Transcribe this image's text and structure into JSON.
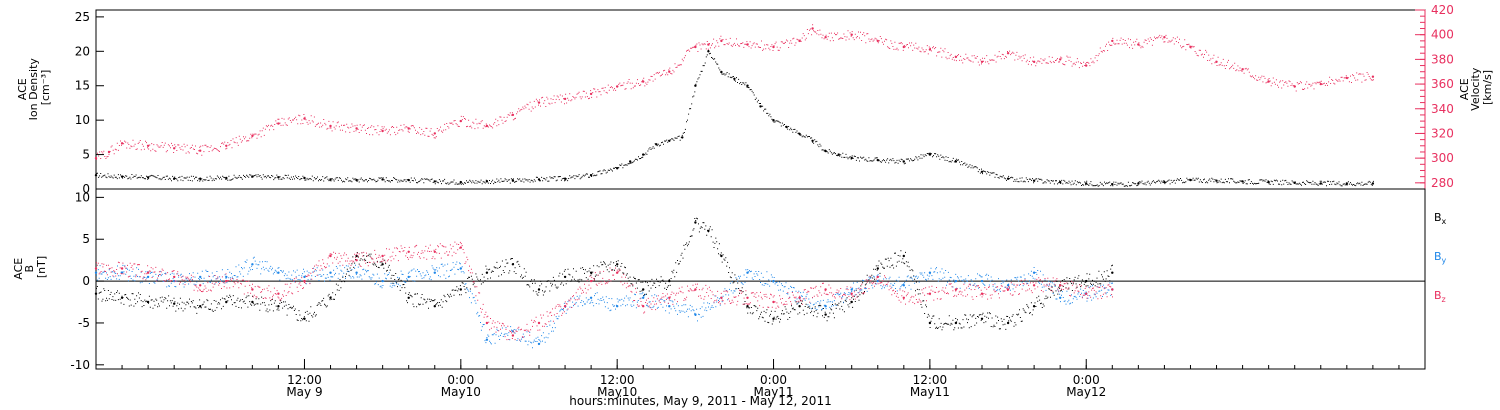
{
  "colors": {
    "density": "#000000",
    "velocity": "#e8305f",
    "bx": "#000000",
    "by": "#1e86e8",
    "bz": "#e8305f",
    "axis": "#000000"
  },
  "chart_data": [
    {
      "type": "scatter",
      "name": "plasma-panel",
      "ylabel_left": [
        "ACE",
        "Ion Density",
        "[cm⁻³]"
      ],
      "ylabel_right": [
        "ACE",
        "Velocity",
        "[km/s]"
      ],
      "xlim": [
        0,
        102
      ],
      "ylim_left": [
        0,
        26
      ],
      "ylim_right": [
        275,
        420
      ],
      "yticks_left": [
        0,
        5,
        10,
        15,
        20,
        25
      ],
      "yticks_right": [
        280,
        300,
        320,
        340,
        360,
        380,
        400,
        420
      ],
      "x_units": "hours since May 8 2011 20:00 UT",
      "series": [
        {
          "id": "density",
          "x": [
            0,
            2,
            4,
            6,
            8,
            10,
            12,
            14,
            16,
            18,
            20,
            22,
            24,
            26,
            28,
            30,
            32,
            34,
            36,
            38,
            40,
            41,
            42,
            43,
            44,
            45,
            46,
            47,
            48,
            49,
            50,
            51,
            52,
            53,
            54,
            55,
            56,
            57,
            58,
            60,
            62,
            64,
            66,
            68,
            70,
            72,
            74,
            76,
            78,
            80,
            82,
            84,
            86,
            88,
            90,
            92,
            94,
            96,
            98
          ],
          "y": [
            2,
            1.8,
            1.7,
            1.5,
            1.5,
            1.6,
            1.8,
            1.7,
            1.6,
            1.4,
            1.3,
            1.4,
            1.3,
            1.1,
            1.0,
            1.1,
            1.2,
            1.4,
            1.5,
            2.0,
            3.0,
            4.0,
            5.0,
            6.5,
            7.0,
            7.5,
            15,
            20,
            17,
            16,
            15,
            12,
            10,
            9,
            8,
            7,
            5.5,
            5,
            4.5,
            4.2,
            4.0,
            5.0,
            4.0,
            2.5,
            1.5,
            1.2,
            1.0,
            0.8,
            0.7,
            0.8,
            1.0,
            1.3,
            1.2,
            1.1,
            1.0,
            0.9,
            0.8,
            0.8,
            0.8
          ]
        },
        {
          "id": "velocity",
          "x": [
            0,
            1,
            2,
            4,
            6,
            8,
            10,
            12,
            14,
            16,
            18,
            20,
            22,
            24,
            26,
            28,
            30,
            32,
            34,
            36,
            38,
            40,
            42,
            44,
            46,
            47,
            48,
            50,
            52,
            54,
            55,
            56,
            58,
            60,
            62,
            64,
            66,
            68,
            70,
            72,
            74,
            76,
            78,
            80,
            82,
            84,
            86,
            88,
            90,
            92,
            94,
            96,
            98
          ],
          "y": [
            300,
            305,
            312,
            310,
            308,
            306,
            310,
            318,
            328,
            332,
            326,
            324,
            322,
            324,
            320,
            330,
            326,
            335,
            345,
            348,
            352,
            358,
            362,
            370,
            390,
            392,
            395,
            392,
            390,
            395,
            405,
            398,
            400,
            395,
            390,
            388,
            382,
            378,
            385,
            378,
            380,
            375,
            395,
            392,
            398,
            390,
            378,
            372,
            362,
            358,
            360,
            365,
            366
          ]
        }
      ]
    },
    {
      "type": "scatter",
      "name": "magnetic-panel",
      "ylabel_left": [
        "ACE",
        "B",
        "[nT]"
      ],
      "xlim": [
        0,
        102
      ],
      "ylim": [
        -10.5,
        11
      ],
      "yticks": [
        -10,
        -5,
        0,
        5,
        10
      ],
      "xticks": [
        {
          "x": 16,
          "time": "12:00",
          "day": "May 9"
        },
        {
          "x": 28,
          "time": "0:00",
          "day": "May10"
        },
        {
          "x": 40,
          "time": "12:00",
          "day": "May10"
        },
        {
          "x": 52,
          "time": "0:00",
          "day": "May11"
        },
        {
          "x": 64,
          "time": "12:00",
          "day": "May11"
        },
        {
          "x": 76,
          "time": "0:00",
          "day": "May12"
        }
      ],
      "xlabel": "hours:minutes, May  9, 2011 - May 12, 2011",
      "legend": [
        {
          "label": "B",
          "sub": "x",
          "colorKey": "bx"
        },
        {
          "label": "B",
          "sub": "y",
          "colorKey": "by"
        },
        {
          "label": "B",
          "sub": "z",
          "colorKey": "bz"
        }
      ],
      "series": [
        {
          "id": "bx",
          "x": [
            0,
            2,
            4,
            6,
            8,
            10,
            12,
            14,
            16,
            18,
            20,
            22,
            24,
            26,
            28,
            30,
            32,
            34,
            36,
            38,
            40,
            42,
            44,
            46,
            47,
            48,
            50,
            52,
            54,
            56,
            58,
            60,
            62,
            64,
            66,
            68,
            70,
            72,
            74,
            76,
            78
          ],
          "y": [
            -1.5,
            -2.0,
            -2.5,
            -2.7,
            -3.0,
            -2.5,
            -2.5,
            -3.0,
            -4.5,
            -2.0,
            3.0,
            2.0,
            -2.0,
            -3.0,
            -1.0,
            1.0,
            2.0,
            -1.0,
            0.5,
            1.0,
            2.0,
            -1.0,
            0.0,
            7.0,
            6.0,
            3.0,
            -3.0,
            -4.5,
            -3.0,
            -4.0,
            -2.5,
            1.5,
            3.0,
            -5.0,
            -5.0,
            -4.5,
            -5.0,
            -3.0,
            -0.5,
            0.0,
            1.0
          ]
        },
        {
          "id": "by",
          "x": [
            0,
            2,
            4,
            6,
            8,
            10,
            12,
            14,
            16,
            18,
            20,
            22,
            24,
            26,
            28,
            30,
            32,
            34,
            36,
            38,
            40,
            42,
            44,
            46,
            48,
            50,
            52,
            54,
            56,
            58,
            60,
            62,
            64,
            66,
            68,
            70,
            72,
            74,
            76,
            78
          ],
          "y": [
            1.0,
            1.0,
            0.5,
            0.0,
            0.5,
            0.5,
            2.0,
            1.0,
            0.5,
            1.0,
            1.0,
            0.0,
            0.5,
            1.0,
            1.5,
            -7.0,
            -6.0,
            -7.5,
            -3.0,
            -2.0,
            -3.0,
            -2.0,
            -3.0,
            -4.0,
            -2.0,
            1.0,
            0.0,
            -2.0,
            -3.0,
            -1.0,
            0.0,
            -0.5,
            1.0,
            0.0,
            0.0,
            -0.5,
            1.0,
            -2.0,
            -1.5,
            -1.0
          ]
        },
        {
          "id": "bz",
          "x": [
            0,
            2,
            4,
            6,
            8,
            10,
            12,
            14,
            16,
            18,
            20,
            22,
            24,
            26,
            28,
            30,
            32,
            34,
            36,
            38,
            40,
            42,
            44,
            46,
            48,
            50,
            52,
            54,
            56,
            58,
            60,
            62,
            64,
            66,
            68,
            70,
            72,
            74,
            76,
            78
          ],
          "y": [
            1.5,
            1.5,
            1.0,
            0.5,
            -0.5,
            0.0,
            -1.0,
            -1.5,
            0.0,
            3.0,
            2.5,
            3.0,
            3.5,
            3.5,
            4.0,
            -5.0,
            -6.5,
            -5.0,
            -3.0,
            0.0,
            1.0,
            -3.0,
            -2.0,
            -1.0,
            -2.0,
            -2.0,
            -2.5,
            -2.0,
            -1.0,
            -1.5,
            0.5,
            -2.0,
            -1.5,
            -1.0,
            -1.5,
            -1.0,
            -0.5,
            -0.5,
            -1.5,
            -1.0
          ]
        }
      ]
    }
  ]
}
